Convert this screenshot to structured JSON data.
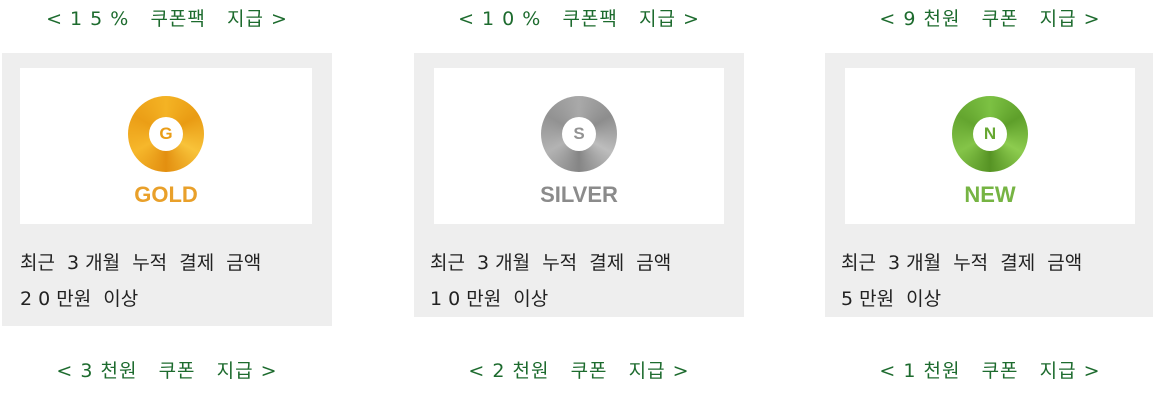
{
  "tiers": [
    {
      "top_caption": "< 1 5 %   쿠폰팩   지급 >",
      "badge_letter": "G",
      "badge_name": "GOLD",
      "badge_color": "#f4b324",
      "desc_line1": "최근  3 개월  누적  결제  금액",
      "desc_line2": "2 0 만원  이상",
      "bottom_caption": "< 3 천원   쿠폰   지급 >"
    },
    {
      "top_caption": "< 1 0 %   쿠폰팩   지급 >",
      "badge_letter": "S",
      "badge_name": "SILVER",
      "badge_color": "#a9a9a9",
      "desc_line1": "최근  3 개월  누적  결제  금액",
      "desc_line2": "1 0 만원  이상",
      "bottom_caption": "< 2 천원   쿠폰   지급 >"
    },
    {
      "top_caption": "< 9 천원   쿠폰   지급 >",
      "badge_letter": "N",
      "badge_name": "NEW",
      "badge_color": "#7cc143",
      "desc_line1": "최근  3 개월  누적  결제  금액",
      "desc_line2": "5 만원  이상",
      "bottom_caption": "< 1 천원   쿠폰   지급 >"
    }
  ]
}
